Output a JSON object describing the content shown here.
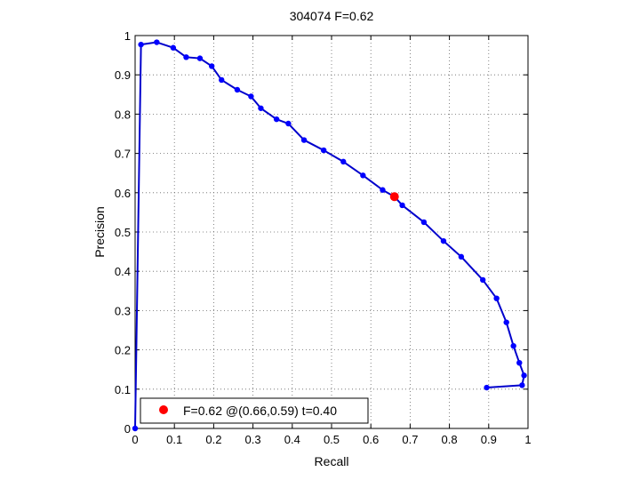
{
  "colors": {
    "curve": "#0000cc",
    "marker": "#0000ff",
    "best_point": "#ff0000",
    "grid": "#666666",
    "axes": "#000000",
    "background": "#ffffff"
  },
  "chart_data": {
    "type": "line",
    "title": "304074 F=0.62",
    "xlabel": "Recall",
    "ylabel": "Precision",
    "xlim": [
      0,
      1
    ],
    "ylim": [
      0,
      1
    ],
    "grid": true,
    "grid_style": "dotted",
    "legend_position": "bottom-left",
    "x_ticks": [
      0,
      0.1,
      0.2,
      0.3,
      0.4,
      0.5,
      0.6,
      0.7,
      0.8,
      0.9,
      1
    ],
    "x_tick_labels": [
      "0",
      "0.1",
      "0.2",
      "0.3",
      "0.4",
      "0.5",
      "0.6",
      "0.7",
      "0.8",
      "0.9",
      "1"
    ],
    "y_ticks": [
      0,
      0.1,
      0.2,
      0.3,
      0.4,
      0.5,
      0.6,
      0.7,
      0.8,
      0.9,
      1
    ],
    "y_tick_labels": [
      "0",
      "0.1",
      "0.2",
      "0.3",
      "0.4",
      "0.5",
      "0.6",
      "0.7",
      "0.8",
      "0.9",
      "1"
    ],
    "series": [
      {
        "x": [
          0.0,
          0.015,
          0.055,
          0.097,
          0.13,
          0.165,
          0.195,
          0.22,
          0.26,
          0.295,
          0.32,
          0.36,
          0.39,
          0.43,
          0.48,
          0.53,
          0.58,
          0.63,
          0.66,
          0.68,
          0.735,
          0.785,
          0.83,
          0.885,
          0.92,
          0.945,
          0.963,
          0.978,
          0.99,
          0.985,
          0.895
        ],
        "y": [
          0.0,
          0.977,
          0.983,
          0.969,
          0.945,
          0.942,
          0.922,
          0.887,
          0.862,
          0.845,
          0.815,
          0.787,
          0.776,
          0.734,
          0.708,
          0.679,
          0.644,
          0.607,
          0.59,
          0.568,
          0.525,
          0.477,
          0.437,
          0.378,
          0.331,
          0.27,
          0.21,
          0.167,
          0.135,
          0.11,
          0.104
        ]
      }
    ],
    "best_point": {
      "recall": 0.66,
      "precision": 0.59,
      "f": 0.62,
      "t": 0.4
    },
    "legend": {
      "label": "F=0.62 @(0.66,0.59) t=0.40"
    }
  }
}
